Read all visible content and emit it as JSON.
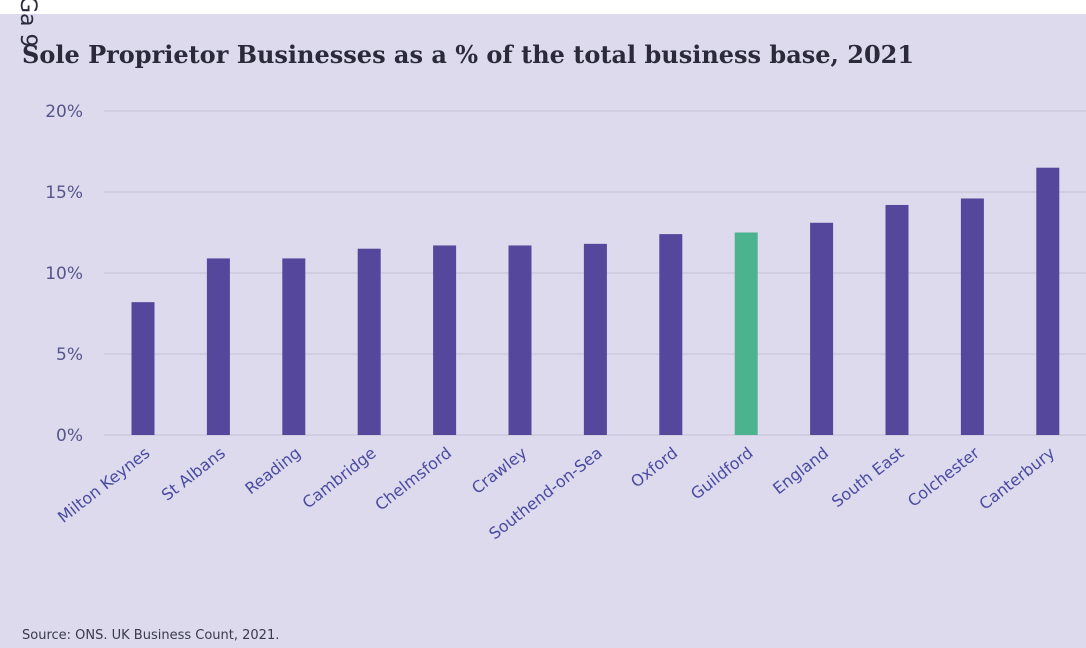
{
  "header": {
    "cut_label": "Ga 9",
    "title": "Sole Proprietor Businesses as a % of the total business base, 2021"
  },
  "footer": {
    "source": "Source: ONS. UK Business Count, 2021."
  },
  "colors": {
    "bar": "#55479b",
    "highlight": "#4cb38f",
    "grid": "#c8c5d8",
    "background": "#dddaee"
  },
  "chart_data": {
    "type": "bar",
    "title": "Sole Proprietor Businesses as a % of the total business base, 2021",
    "xlabel": "",
    "ylabel": "",
    "categories": [
      "Milton Keynes",
      "St Albans",
      "Reading",
      "Cambridge",
      "Chelmsford",
      "Crawley",
      "Southend-on-Sea",
      "Oxford",
      "Guildford",
      "England",
      "South East",
      "Colchester",
      "Canterbury"
    ],
    "values": [
      8.2,
      10.9,
      10.9,
      11.5,
      11.7,
      11.7,
      11.8,
      12.4,
      12.5,
      13.1,
      14.2,
      14.6,
      16.5
    ],
    "highlight": "Guildford",
    "ylim": [
      0,
      20
    ],
    "yticks": [
      0,
      5,
      10,
      15,
      20
    ],
    "ytick_labels": [
      "0%",
      "5%",
      "10%",
      "15%",
      "20%"
    ],
    "grid": true,
    "legend": "none"
  }
}
